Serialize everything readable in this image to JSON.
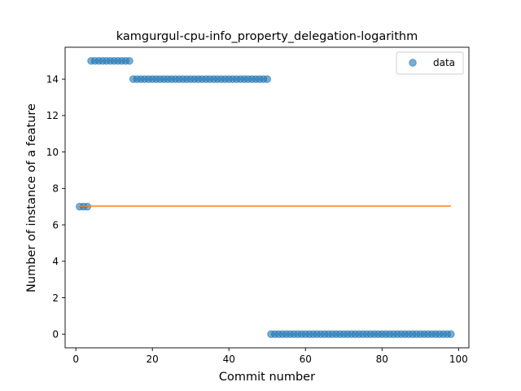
{
  "chart_data": {
    "type": "scatter",
    "title": "kamgurgul-cpu-info_property_delegation-logarithm",
    "xlabel": "Commit number",
    "ylabel": "Number of instance of a feature",
    "xlim": [
      -2.8,
      102.7
    ],
    "ylim": [
      -0.75,
      15.75
    ],
    "xticks": [
      0,
      20,
      40,
      60,
      80,
      100
    ],
    "yticks": [
      0,
      2,
      4,
      6,
      8,
      10,
      12,
      14
    ],
    "legend_position": "top-right",
    "grid": false,
    "series": [
      {
        "name": "data",
        "kind": "points",
        "color": "#1f77b4",
        "x": [
          1,
          2,
          3,
          4,
          5,
          6,
          7,
          8,
          9,
          10,
          11,
          12,
          13,
          14,
          15,
          16,
          17,
          18,
          19,
          20,
          21,
          22,
          23,
          24,
          25,
          26,
          27,
          28,
          29,
          30,
          31,
          32,
          33,
          34,
          35,
          36,
          37,
          38,
          39,
          40,
          41,
          42,
          43,
          44,
          45,
          46,
          47,
          48,
          49,
          50,
          51,
          52,
          53,
          54,
          55,
          56,
          57,
          58,
          59,
          60,
          61,
          62,
          63,
          64,
          65,
          66,
          67,
          68,
          69,
          70,
          71,
          72,
          73,
          74,
          75,
          76,
          77,
          78,
          79,
          80,
          81,
          82,
          83,
          84,
          85,
          86,
          87,
          88,
          89,
          90,
          91,
          92,
          93,
          94,
          95,
          96,
          97,
          98
        ],
        "y": [
          7,
          7,
          7,
          15,
          15,
          15,
          15,
          15,
          15,
          15,
          15,
          15,
          15,
          15,
          14,
          14,
          14,
          14,
          14,
          14,
          14,
          14,
          14,
          14,
          14,
          14,
          14,
          14,
          14,
          14,
          14,
          14,
          14,
          14,
          14,
          14,
          14,
          14,
          14,
          14,
          14,
          14,
          14,
          14,
          14,
          14,
          14,
          14,
          14,
          14,
          0,
          0,
          0,
          0,
          0,
          0,
          0,
          0,
          0,
          0,
          0,
          0,
          0,
          0,
          0,
          0,
          0,
          0,
          0,
          0,
          0,
          0,
          0,
          0,
          0,
          0,
          0,
          0,
          0,
          0,
          0,
          0,
          0,
          0,
          0,
          0,
          0,
          0,
          0,
          0,
          0,
          0,
          0,
          0,
          0,
          0,
          0,
          0
        ]
      },
      {
        "kind": "line",
        "color": "#ff7f0e",
        "x": [
          1,
          98
        ],
        "y": [
          7.03,
          7.03
        ]
      }
    ]
  }
}
